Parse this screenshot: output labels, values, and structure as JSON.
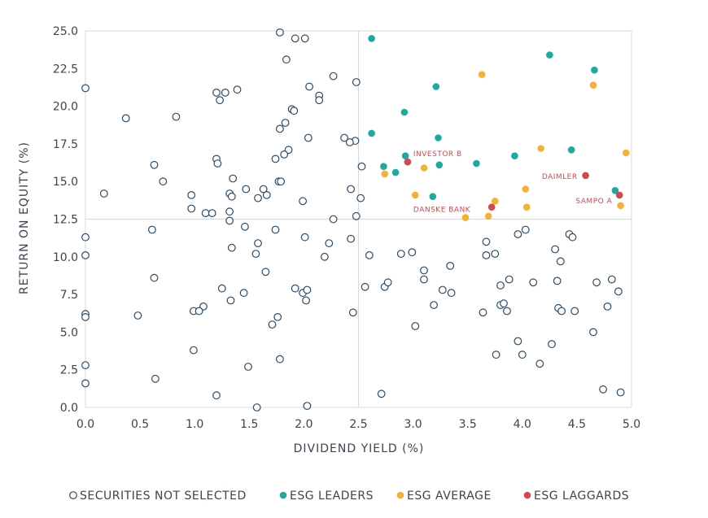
{
  "chart_data": {
    "type": "scatter",
    "title": "",
    "xlabel": "DIVIDEND YIELD (%)",
    "ylabel": "RETURN ON EQUITY (%)",
    "xlim": [
      0,
      5
    ],
    "ylim": [
      0,
      25
    ],
    "x_ticks": [
      "0.0",
      "0.5",
      "1.0",
      "1.5",
      "2.0",
      "2.5",
      "3.0",
      "3.5",
      "4.0",
      "4.5",
      "5.0"
    ],
    "y_ticks": [
      "0.0",
      "2.5",
      "5.0",
      "7.5",
      "10.0",
      "12.5",
      "15.0",
      "17.5",
      "20.0",
      "22.5",
      "25.0"
    ],
    "grid": false,
    "reference_lines": {
      "x": 2.5,
      "y": 12.5
    },
    "legend_position": "bottom",
    "series": [
      {
        "name": "SECURITIES NOT SELECTED",
        "style": "hollow",
        "color": "#2b4a6b",
        "points": [
          [
            1.78,
            24.9
          ],
          [
            1.92,
            24.5
          ],
          [
            2.01,
            24.5
          ],
          [
            1.84,
            23.1
          ],
          [
            2.27,
            22.0
          ],
          [
            0.0,
            21.2
          ],
          [
            2.05,
            21.3
          ],
          [
            2.48,
            21.6
          ],
          [
            1.39,
            21.1
          ],
          [
            1.2,
            20.9
          ],
          [
            1.28,
            20.9
          ],
          [
            1.23,
            20.4
          ],
          [
            2.14,
            20.7
          ],
          [
            2.14,
            20.4
          ],
          [
            1.89,
            19.8
          ],
          [
            1.91,
            19.7
          ],
          [
            0.37,
            19.2
          ],
          [
            0.83,
            19.3
          ],
          [
            1.83,
            18.9
          ],
          [
            1.78,
            18.5
          ],
          [
            2.37,
            17.9
          ],
          [
            2.47,
            17.7
          ],
          [
            2.42,
            17.6
          ],
          [
            2.04,
            17.9
          ],
          [
            1.86,
            17.1
          ],
          [
            1.82,
            16.8
          ],
          [
            1.74,
            16.5
          ],
          [
            1.2,
            16.5
          ],
          [
            1.21,
            16.2
          ],
          [
            0.63,
            16.1
          ],
          [
            2.53,
            16.0
          ],
          [
            0.71,
            15.0
          ],
          [
            1.35,
            15.2
          ],
          [
            1.77,
            15.0
          ],
          [
            1.79,
            15.0
          ],
          [
            1.47,
            14.5
          ],
          [
            1.63,
            14.5
          ],
          [
            1.66,
            14.1
          ],
          [
            1.32,
            14.2
          ],
          [
            1.34,
            14.0
          ],
          [
            1.58,
            13.9
          ],
          [
            0.17,
            14.2
          ],
          [
            0.97,
            14.1
          ],
          [
            2.43,
            14.5
          ],
          [
            2.52,
            13.9
          ],
          [
            1.99,
            13.7
          ],
          [
            0.97,
            13.2
          ],
          [
            1.32,
            13.0
          ],
          [
            1.1,
            12.9
          ],
          [
            1.16,
            12.9
          ],
          [
            1.32,
            12.4
          ],
          [
            2.27,
            12.5
          ],
          [
            2.48,
            12.7
          ],
          [
            0.61,
            11.8
          ],
          [
            1.74,
            11.8
          ],
          [
            1.46,
            12.0
          ],
          [
            0.0,
            11.3
          ],
          [
            1.58,
            10.9
          ],
          [
            2.01,
            11.3
          ],
          [
            2.43,
            11.2
          ],
          [
            2.23,
            10.9
          ],
          [
            1.34,
            10.6
          ],
          [
            1.56,
            10.2
          ],
          [
            2.19,
            10.0
          ],
          [
            0.0,
            10.1
          ],
          [
            1.65,
            9.0
          ],
          [
            0.63,
            8.6
          ],
          [
            1.25,
            7.9
          ],
          [
            1.45,
            7.6
          ],
          [
            1.92,
            7.9
          ],
          [
            1.99,
            7.6
          ],
          [
            2.03,
            7.8
          ],
          [
            2.02,
            7.1
          ],
          [
            1.33,
            7.1
          ],
          [
            1.08,
            6.7
          ],
          [
            0.99,
            6.4
          ],
          [
            1.04,
            6.4
          ],
          [
            0.48,
            6.1
          ],
          [
            0.0,
            6.2
          ],
          [
            0.0,
            6.0
          ],
          [
            2.45,
            6.3
          ],
          [
            1.76,
            6.0
          ],
          [
            1.71,
            5.5
          ],
          [
            0.99,
            3.8
          ],
          [
            1.78,
            3.2
          ],
          [
            1.49,
            2.7
          ],
          [
            0.0,
            2.8
          ],
          [
            0.0,
            1.6
          ],
          [
            0.64,
            1.9
          ],
          [
            1.2,
            0.8
          ],
          [
            2.03,
            0.1
          ],
          [
            1.57,
            0.0
          ],
          [
            2.56,
            8.0
          ],
          [
            2.6,
            10.1
          ],
          [
            2.74,
            8.0
          ],
          [
            2.77,
            8.3
          ],
          [
            2.89,
            10.2
          ],
          [
            2.99,
            10.3
          ],
          [
            3.02,
            5.4
          ],
          [
            3.1,
            9.1
          ],
          [
            3.1,
            8.5
          ],
          [
            3.19,
            6.8
          ],
          [
            3.27,
            7.8
          ],
          [
            3.34,
            9.4
          ],
          [
            3.35,
            7.6
          ],
          [
            3.64,
            6.3
          ],
          [
            3.67,
            11.0
          ],
          [
            3.67,
            10.1
          ],
          [
            3.75,
            10.2
          ],
          [
            3.76,
            3.5
          ],
          [
            3.8,
            6.8
          ],
          [
            3.8,
            8.1
          ],
          [
            3.83,
            6.9
          ],
          [
            3.86,
            6.4
          ],
          [
            3.88,
            8.5
          ],
          [
            3.96,
            11.5
          ],
          [
            3.96,
            4.4
          ],
          [
            4.0,
            3.5
          ],
          [
            4.03,
            11.8
          ],
          [
            4.1,
            8.3
          ],
          [
            4.16,
            2.9
          ],
          [
            4.27,
            4.2
          ],
          [
            4.3,
            10.5
          ],
          [
            4.32,
            8.4
          ],
          [
            4.33,
            6.6
          ],
          [
            4.35,
            9.7
          ],
          [
            4.36,
            6.4
          ],
          [
            4.43,
            11.5
          ],
          [
            4.46,
            11.3
          ],
          [
            4.48,
            6.4
          ],
          [
            4.65,
            5.0
          ],
          [
            4.68,
            8.3
          ],
          [
            4.74,
            1.2
          ],
          [
            4.78,
            6.7
          ],
          [
            4.82,
            8.5
          ],
          [
            4.88,
            7.7
          ],
          [
            4.9,
            1.0
          ],
          [
            2.71,
            0.9
          ]
        ]
      },
      {
        "name": "ESG LEADERS",
        "style": "filled",
        "color": "#1fa99e",
        "points": [
          [
            2.62,
            24.5
          ],
          [
            4.25,
            23.4
          ],
          [
            4.66,
            22.4
          ],
          [
            3.21,
            21.3
          ],
          [
            2.92,
            19.6
          ],
          [
            2.62,
            18.2
          ],
          [
            3.23,
            17.9
          ],
          [
            2.93,
            16.7
          ],
          [
            4.45,
            17.1
          ],
          [
            3.93,
            16.7
          ],
          [
            2.73,
            16.0
          ],
          [
            2.84,
            15.6
          ],
          [
            3.24,
            16.1
          ],
          [
            3.58,
            16.2
          ],
          [
            3.18,
            14.0
          ],
          [
            4.85,
            14.4
          ]
        ]
      },
      {
        "name": "ESG AVERAGE",
        "style": "filled",
        "color": "#f6b135",
        "points": [
          [
            3.63,
            22.1
          ],
          [
            4.65,
            21.4
          ],
          [
            4.17,
            17.2
          ],
          [
            4.95,
            16.9
          ],
          [
            2.74,
            15.5
          ],
          [
            3.1,
            15.9
          ],
          [
            3.02,
            14.1
          ],
          [
            4.03,
            14.5
          ],
          [
            3.75,
            13.7
          ],
          [
            4.04,
            13.3
          ],
          [
            3.48,
            12.6
          ],
          [
            3.69,
            12.7
          ],
          [
            4.9,
            13.4
          ]
        ]
      },
      {
        "name": "ESG LAGGARDS",
        "style": "filled",
        "color": "#d2484e",
        "points": [
          [
            2.95,
            16.3
          ],
          [
            4.58,
            15.4
          ],
          [
            4.89,
            14.1
          ],
          [
            3.72,
            13.3
          ]
        ]
      }
    ],
    "annotations": [
      {
        "text": "INVESTOR B",
        "x": 2.95,
        "y": 16.3
      },
      {
        "text": "DAIMLER",
        "x": 4.58,
        "y": 15.4
      },
      {
        "text": "SAMPO A",
        "x": 4.89,
        "y": 14.1
      },
      {
        "text": "DANSKE BANK",
        "x": 3.72,
        "y": 13.3
      }
    ]
  }
}
